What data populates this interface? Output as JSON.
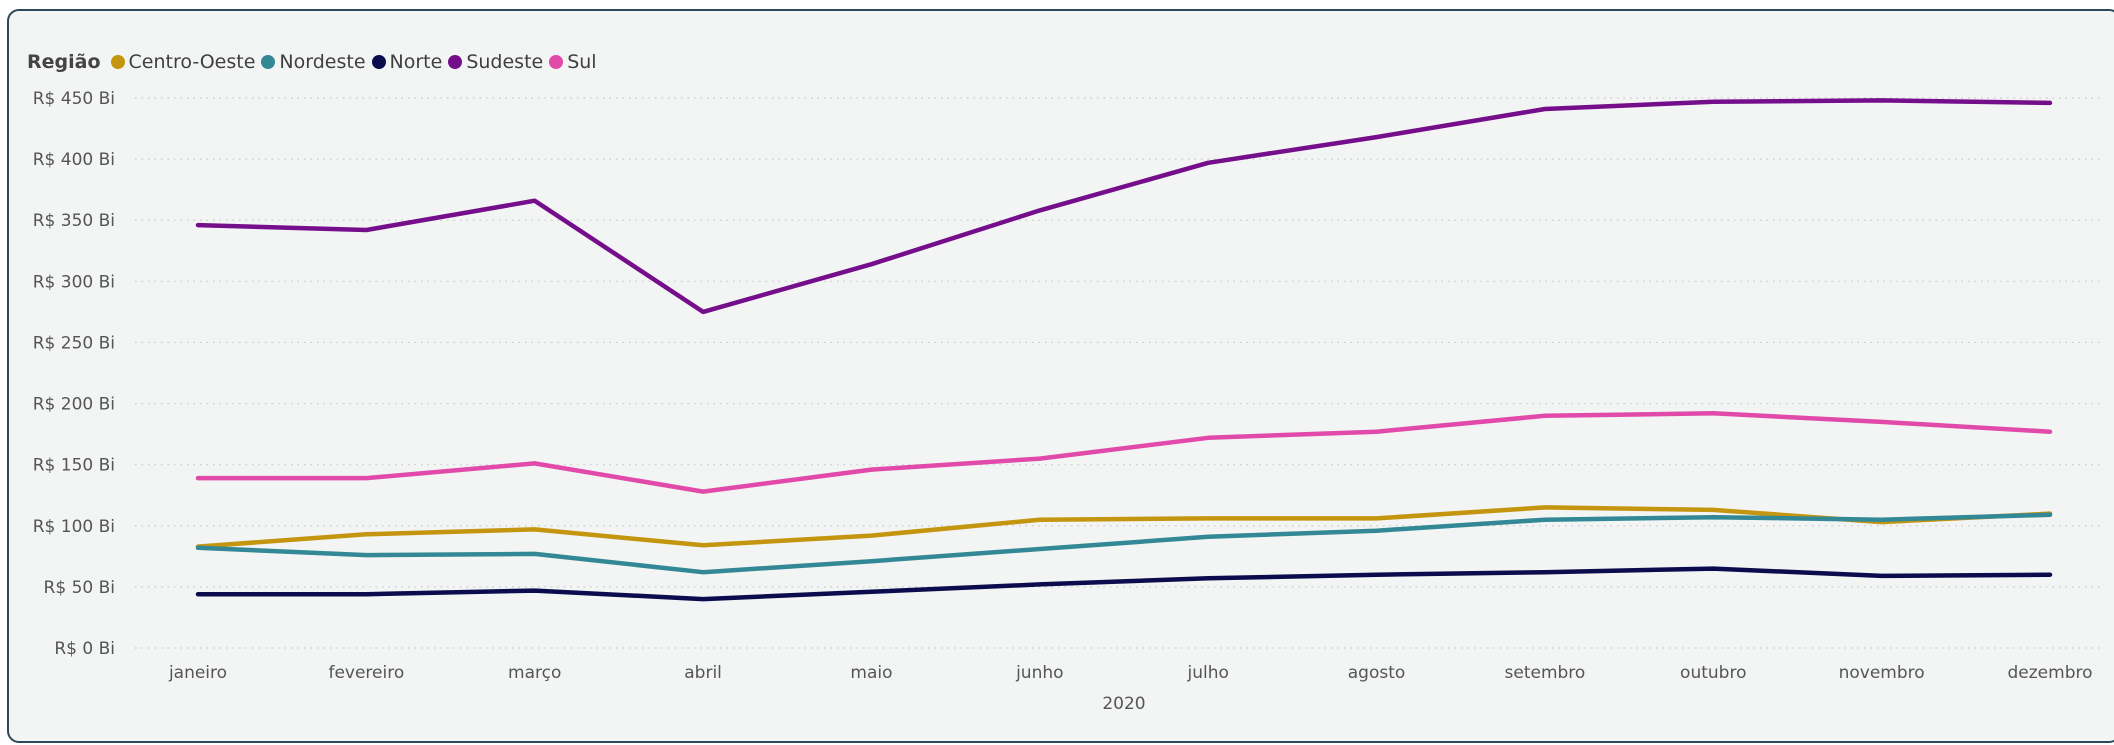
{
  "chart_data": {
    "type": "line",
    "legend_title": "Região",
    "xlabel": "2020",
    "categories": [
      "janeiro",
      "fevereiro",
      "março",
      "abril",
      "maio",
      "junho",
      "julho",
      "agosto",
      "setembro",
      "outubro",
      "novembro",
      "dezembro"
    ],
    "yticks": [
      {
        "value": 0,
        "label": "R$ 0 Bi"
      },
      {
        "value": 50,
        "label": "R$ 50 Bi"
      },
      {
        "value": 100,
        "label": "R$ 100 Bi"
      },
      {
        "value": 150,
        "label": "R$ 150 Bi"
      },
      {
        "value": 200,
        "label": "R$ 200 Bi"
      },
      {
        "value": 250,
        "label": "R$ 250 Bi"
      },
      {
        "value": 300,
        "label": "R$ 300 Bi"
      },
      {
        "value": 350,
        "label": "R$ 350 Bi"
      },
      {
        "value": 400,
        "label": "R$ 400 Bi"
      },
      {
        "value": 450,
        "label": "R$ 450 Bi"
      }
    ],
    "ylim": [
      0,
      450
    ],
    "grid": true,
    "legend_position": "top-left",
    "series": [
      {
        "name": "Centro-Oeste",
        "color": "#c4950e",
        "values": [
          83,
          93,
          97,
          84,
          92,
          105,
          106,
          106,
          115,
          113,
          103,
          110
        ]
      },
      {
        "name": "Nordeste",
        "color": "#338896",
        "values": [
          82,
          76,
          77,
          62,
          71,
          81,
          91,
          96,
          105,
          107,
          105,
          109
        ]
      },
      {
        "name": "Norte",
        "color": "#0b0c4e",
        "values": [
          44,
          44,
          47,
          40,
          46,
          52,
          57,
          60,
          62,
          65,
          59,
          60
        ]
      },
      {
        "name": "Sudeste",
        "color": "#740e8a",
        "values": [
          346,
          342,
          366,
          275,
          314,
          358,
          397,
          418,
          441,
          447,
          448,
          446
        ]
      },
      {
        "name": "Sul",
        "color": "#e14aa9",
        "values": [
          139,
          139,
          151,
          128,
          146,
          155,
          172,
          177,
          190,
          192,
          185,
          177
        ]
      }
    ]
  }
}
